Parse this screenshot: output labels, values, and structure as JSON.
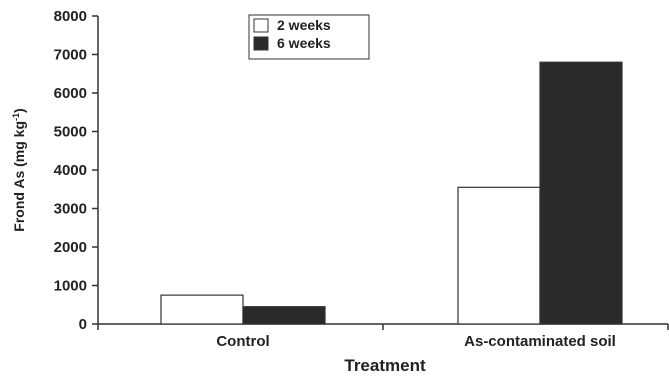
{
  "chart_data": {
    "type": "bar",
    "categories": [
      "Control",
      "As-contaminated soil"
    ],
    "series": [
      {
        "name": "2 weeks",
        "values": [
          750,
          3550
        ],
        "color": "#ffffff"
      },
      {
        "name": "6 weeks",
        "values": [
          450,
          6800
        ],
        "color": "#2a2a2a"
      }
    ],
    "xlabel": "Treatment",
    "ylabel": "Frond As (mg kg",
    "ylabel_superscript": "-1",
    "ylabel_suffix": ")",
    "ylim": [
      0,
      8000
    ],
    "yticks": [
      0,
      1000,
      2000,
      3000,
      4000,
      5000,
      6000,
      7000,
      8000
    ],
    "grid": false,
    "legend_position": "top-left"
  }
}
